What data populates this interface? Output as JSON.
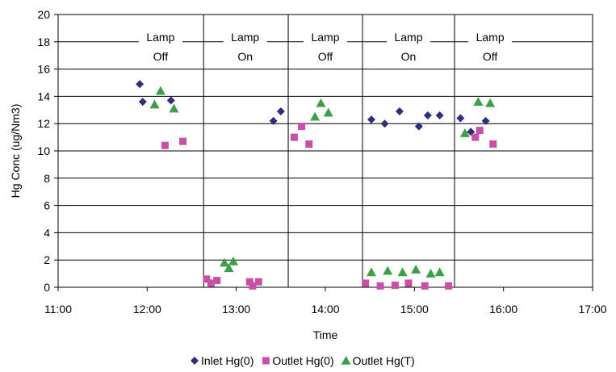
{
  "chart_data": {
    "type": "scatter",
    "xlabel": "Time",
    "ylabel": "Hg Conc (ug/Nm3)",
    "xlim": [
      "11:00",
      "17:00"
    ],
    "ylim": [
      0,
      20
    ],
    "x_ticks": [
      "11:00",
      "12:00",
      "13:00",
      "14:00",
      "15:00",
      "16:00",
      "17:00"
    ],
    "y_ticks": [
      0,
      2,
      4,
      6,
      8,
      10,
      12,
      14,
      16,
      18,
      20
    ],
    "grid": "horizontal",
    "legend_position": "bottom",
    "section_dividers": [
      "12:38",
      "13:35",
      "14:25",
      "15:27"
    ],
    "annotations": [
      {
        "x": "12:09",
        "line1": "Lamp",
        "line2": "Off"
      },
      {
        "x": "13:06",
        "line1": "Lamp",
        "line2": "On"
      },
      {
        "x": "14:00",
        "line1": "Lamp",
        "line2": "Off"
      },
      {
        "x": "14:56",
        "line1": "Lamp",
        "line2": "On"
      },
      {
        "x": "15:51",
        "line1": "Lamp",
        "line2": "Off"
      }
    ],
    "series": [
      {
        "name": "Inlet Hg(0)",
        "marker": "diamond",
        "color": "#2E2E7A",
        "points": [
          {
            "x": "11:55",
            "y": 14.9
          },
          {
            "x": "11:57",
            "y": 13.6
          },
          {
            "x": "12:16",
            "y": 13.7
          },
          {
            "x": "13:25",
            "y": 12.2
          },
          {
            "x": "13:30",
            "y": 12.9
          },
          {
            "x": "14:31",
            "y": 12.3
          },
          {
            "x": "14:40",
            "y": 12.0
          },
          {
            "x": "14:50",
            "y": 12.9
          },
          {
            "x": "15:03",
            "y": 11.8
          },
          {
            "x": "15:09",
            "y": 12.6
          },
          {
            "x": "15:17",
            "y": 12.6
          },
          {
            "x": "15:31",
            "y": 12.4
          },
          {
            "x": "15:38",
            "y": 11.4
          },
          {
            "x": "15:48",
            "y": 12.2
          }
        ]
      },
      {
        "name": "Outlet Hg(0)",
        "marker": "square",
        "color": "#C850A8",
        "points": [
          {
            "x": "12:12",
            "y": 10.4
          },
          {
            "x": "12:24",
            "y": 10.7
          },
          {
            "x": "12:40",
            "y": 0.6
          },
          {
            "x": "12:43",
            "y": 0.3
          },
          {
            "x": "12:47",
            "y": 0.5
          },
          {
            "x": "13:09",
            "y": 0.4
          },
          {
            "x": "13:11",
            "y": 0.1
          },
          {
            "x": "13:15",
            "y": 0.4
          },
          {
            "x": "13:39",
            "y": 11.0
          },
          {
            "x": "13:44",
            "y": 11.8
          },
          {
            "x": "13:49",
            "y": 10.5
          },
          {
            "x": "14:27",
            "y": 0.3
          },
          {
            "x": "14:37",
            "y": 0.1
          },
          {
            "x": "14:47",
            "y": 0.15
          },
          {
            "x": "14:56",
            "y": 0.3
          },
          {
            "x": "15:07",
            "y": 0.1
          },
          {
            "x": "15:23",
            "y": 0.1
          },
          {
            "x": "15:41",
            "y": 11.0
          },
          {
            "x": "15:44",
            "y": 11.5
          },
          {
            "x": "15:53",
            "y": 10.5
          }
        ]
      },
      {
        "name": "Outlet Hg(T)",
        "marker": "triangle",
        "color": "#3CA048",
        "points": [
          {
            "x": "12:05",
            "y": 13.4
          },
          {
            "x": "12:09",
            "y": 14.4
          },
          {
            "x": "12:18",
            "y": 13.1
          },
          {
            "x": "12:52",
            "y": 1.8
          },
          {
            "x": "12:55",
            "y": 1.4
          },
          {
            "x": "12:58",
            "y": 1.9
          },
          {
            "x": "13:53",
            "y": 12.5
          },
          {
            "x": "13:57",
            "y": 13.5
          },
          {
            "x": "14:02",
            "y": 12.8
          },
          {
            "x": "14:31",
            "y": 1.1
          },
          {
            "x": "14:42",
            "y": 1.2
          },
          {
            "x": "14:52",
            "y": 1.1
          },
          {
            "x": "15:01",
            "y": 1.3
          },
          {
            "x": "15:11",
            "y": 1.0
          },
          {
            "x": "15:17",
            "y": 1.1
          },
          {
            "x": "15:34",
            "y": 11.3
          },
          {
            "x": "15:43",
            "y": 13.6
          },
          {
            "x": "15:51",
            "y": 13.5
          }
        ]
      }
    ]
  }
}
